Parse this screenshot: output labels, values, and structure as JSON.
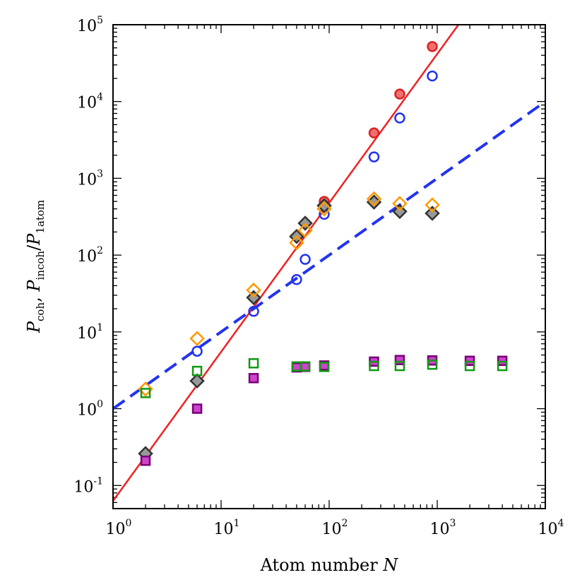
{
  "chart_data": {
    "type": "scatter",
    "title": "",
    "xlabel": {
      "prefix": "Atom number ",
      "var": "N"
    },
    "ylabel": {
      "parts": [
        {
          "text": "P",
          "sub": "coh"
        },
        {
          "text": ", "
        },
        {
          "text": "P",
          "sub": "incoh"
        },
        {
          "text": "/"
        },
        {
          "text": "P",
          "sub": "1atom"
        }
      ]
    },
    "xscale": "log",
    "yscale": "log",
    "xlim": [
      1,
      10000
    ],
    "ylim": [
      0.05,
      100000
    ],
    "x_ticks": [
      {
        "value": 1,
        "base": "10",
        "exp": "0"
      },
      {
        "value": 10,
        "base": "10",
        "exp": "1"
      },
      {
        "value": 100,
        "base": "10",
        "exp": "2"
      },
      {
        "value": 1000,
        "base": "10",
        "exp": "3"
      },
      {
        "value": 10000,
        "base": "10",
        "exp": "4"
      }
    ],
    "y_ticks": [
      {
        "value": 0.1,
        "base": "10",
        "exp": "-1"
      },
      {
        "value": 1,
        "base": "10",
        "exp": "0"
      },
      {
        "value": 10,
        "base": "10",
        "exp": "1"
      },
      {
        "value": 100,
        "base": "10",
        "exp": "2"
      },
      {
        "value": 1000,
        "base": "10",
        "exp": "3"
      },
      {
        "value": 10000,
        "base": "10",
        "exp": "4"
      },
      {
        "value": 100000,
        "base": "10",
        "exp": "5"
      }
    ],
    "lines": [
      {
        "name": "coherent-fit-line",
        "style": "solid",
        "color": "#ee2222",
        "points": [
          [
            1,
            0.063
          ],
          [
            1570,
            100000
          ]
        ]
      },
      {
        "name": "incoherent-fit-line",
        "style": "dashed",
        "color": "#2233ee",
        "points": [
          [
            1,
            1.0
          ],
          [
            10000,
            10000
          ]
        ]
      }
    ],
    "series": [
      {
        "name": "filled-red-circles",
        "marker": "circle",
        "fill": "#f07070",
        "stroke": "#dd2222",
        "points": [
          [
            90,
            500
          ],
          [
            260,
            3900
          ],
          [
            450,
            12500
          ],
          [
            900,
            52000
          ]
        ]
      },
      {
        "name": "open-blue-circles",
        "marker": "circle",
        "fill": "none",
        "stroke": "#2233ee",
        "points": [
          [
            6,
            5.6
          ],
          [
            20,
            18.5
          ],
          [
            50,
            48
          ],
          [
            60,
            88
          ],
          [
            90,
            340
          ],
          [
            260,
            1900
          ],
          [
            450,
            6100
          ],
          [
            900,
            21500
          ]
        ]
      },
      {
        "name": "grey-diamonds",
        "marker": "diamond",
        "fill": "#999999",
        "stroke": "#333333",
        "points": [
          [
            2,
            0.26
          ],
          [
            6,
            2.3
          ],
          [
            20,
            28
          ],
          [
            50,
            175
          ],
          [
            60,
            260
          ],
          [
            90,
            440
          ],
          [
            260,
            490
          ],
          [
            450,
            370
          ],
          [
            900,
            350
          ]
        ]
      },
      {
        "name": "open-orange-diamonds",
        "marker": "diamond",
        "fill": "none",
        "stroke": "#ff9900",
        "points": [
          [
            2,
            1.8
          ],
          [
            6,
            8.2
          ],
          [
            20,
            35
          ],
          [
            50,
            145
          ],
          [
            60,
            210
          ],
          [
            90,
            400
          ],
          [
            260,
            540
          ],
          [
            450,
            470
          ],
          [
            900,
            450
          ]
        ]
      },
      {
        "name": "magenta-squares",
        "marker": "square",
        "fill": "#cc44cc",
        "stroke": "#770077",
        "points": [
          [
            2,
            0.21
          ],
          [
            6,
            1.0
          ],
          [
            20,
            2.5
          ],
          [
            50,
            3.45
          ],
          [
            60,
            3.5
          ],
          [
            90,
            3.65
          ],
          [
            260,
            4.1
          ],
          [
            450,
            4.3
          ],
          [
            900,
            4.25
          ],
          [
            2000,
            4.2
          ],
          [
            4000,
            4.2
          ]
        ]
      },
      {
        "name": "open-green-squares",
        "marker": "square",
        "fill": "none",
        "stroke": "#119911",
        "points": [
          [
            2,
            1.6
          ],
          [
            6,
            3.1
          ],
          [
            20,
            3.9
          ],
          [
            50,
            3.55
          ],
          [
            60,
            3.55
          ],
          [
            90,
            3.5
          ],
          [
            260,
            3.6
          ],
          [
            450,
            3.6
          ],
          [
            900,
            3.75
          ],
          [
            2000,
            3.6
          ],
          [
            4000,
            3.6
          ]
        ]
      }
    ]
  }
}
